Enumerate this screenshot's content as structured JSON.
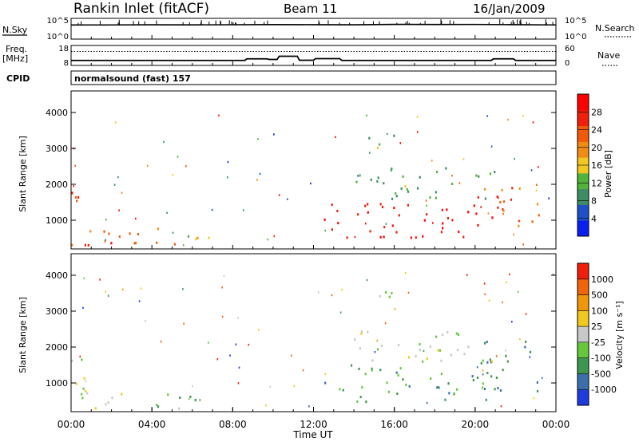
{
  "header": {
    "site": "Rankin Inlet (fitACF)",
    "beam": "Beam 11",
    "date": "16/Jan/2009"
  },
  "top_panels": {
    "nsky_label": "N.Sky",
    "nsky_ticks": [
      "10^5",
      "10^0"
    ],
    "nsearch_label": "N.Search",
    "nsearch_ticks": [
      "10^5",
      "10^0"
    ],
    "freq_label_1": "Freq.",
    "freq_label_2": "[MHz]",
    "freq_ticks": [
      "18",
      "8"
    ],
    "nave_label": "Nave",
    "nave_ticks": [
      "60",
      "0"
    ],
    "cpid_label": "CPID",
    "cpid_text": "normalsound (fast) 157"
  },
  "x_axis": {
    "title": "Time UT",
    "ticks": [
      "00:00",
      "04:00",
      "08:00",
      "12:00",
      "16:00",
      "20:00",
      "00:00"
    ]
  },
  "colors": {
    "power_scale": [
      "#0a1ef0",
      "#1e50c8",
      "#3c8c64",
      "#50b43c",
      "#f0c81e",
      "#f08c14",
      "#f05a0a",
      "#f01e0a",
      "#ff0000"
    ],
    "velocity_scale": [
      "#1e3cdc",
      "#3c6eaa",
      "#3c9650",
      "#64c83c",
      "#c8c8c8",
      "#f0c81e",
      "#f0960a",
      "#f0640a",
      "#f01e0a"
    ]
  },
  "chart_data": [
    {
      "type": "line",
      "title": "N.Sky / N.Search",
      "xlabel": "",
      "ylabel": "N.Sky",
      "y2label": "N.Search",
      "ylim": [
        1,
        100000
      ],
      "yscale": "log",
      "series": [
        {
          "name": "N.Sky",
          "x": [
            0,
            2,
            4,
            6,
            8,
            10,
            12,
            14,
            16,
            18,
            20,
            22,
            24
          ],
          "y": [
            2500,
            2600,
            2800,
            2700,
            2900,
            3200,
            3000,
            2800,
            3500,
            3300,
            3400,
            3000,
            2600
          ]
        },
        {
          "name": "N.Search",
          "x": [
            0,
            24
          ],
          "y": [
            1,
            1
          ]
        }
      ]
    },
    {
      "type": "line",
      "title": "Freq. / Nave",
      "xlabel": "",
      "ylabel": "Freq. [MHz]",
      "y2label": "Nave",
      "ylim": [
        8,
        18
      ],
      "y2lim": [
        0,
        60
      ],
      "series": [
        {
          "name": "Freq.",
          "x": [
            0,
            8.6,
            8.7,
            9.7,
            9.8,
            10.2,
            10.3,
            11.2,
            11.3,
            12.0,
            12.1,
            13.3,
            13.4,
            20.8,
            20.9,
            21.9,
            22.0,
            24
          ],
          "y": [
            10.5,
            10.5,
            11.3,
            11.3,
            11.0,
            11.0,
            12.6,
            12.6,
            10.6,
            10.6,
            11.4,
            11.4,
            10.5,
            10.5,
            11.3,
            11.3,
            10.5,
            10.5
          ]
        },
        {
          "name": "Nave",
          "x": [
            0,
            24
          ],
          "y": [
            42,
            42
          ]
        }
      ]
    },
    {
      "type": "heatmap",
      "title": "Power",
      "xlabel": "",
      "ylabel": "Slant Range [km]",
      "xlim": [
        0,
        24
      ],
      "ylim": [
        200,
        4600
      ],
      "yticks": [
        "1000",
        "2000",
        "3000",
        "4000"
      ],
      "colorbar_label": "Power [dB]",
      "colorbar_ticks": [
        "28",
        "24",
        "20",
        "16",
        "12",
        "8",
        "4"
      ],
      "clim": [
        0,
        30
      ],
      "regions": [
        {
          "t0": 0.0,
          "t1": 0.7,
          "r0": 800,
          "r1": 1900,
          "v": 24
        },
        {
          "t0": 0.0,
          "t1": 3.5,
          "r0": 250,
          "r1": 900,
          "v": 20
        },
        {
          "t0": 0.5,
          "t1": 2.5,
          "r0": 300,
          "r1": 600,
          "v": 28
        },
        {
          "t0": 3.8,
          "t1": 5.2,
          "r0": 350,
          "r1": 850,
          "v": 18
        },
        {
          "t0": 5.2,
          "t1": 7.0,
          "r0": 250,
          "r1": 700,
          "v": 16
        },
        {
          "t0": 12.5,
          "t1": 16.5,
          "r0": 500,
          "r1": 1600,
          "v": 26
        },
        {
          "t0": 16.5,
          "t1": 21.0,
          "r0": 500,
          "r1": 1500,
          "v": 28
        },
        {
          "t0": 20.0,
          "t1": 23.2,
          "r0": 800,
          "r1": 2000,
          "v": 22
        },
        {
          "t0": 14.0,
          "t1": 21.0,
          "r0": 1600,
          "r1": 2500,
          "v": 10
        },
        {
          "t0": 14.5,
          "t1": 16.0,
          "r0": 3000,
          "r1": 3600,
          "v": 12
        }
      ]
    },
    {
      "type": "heatmap",
      "title": "Velocity",
      "xlabel": "Time UT",
      "ylabel": "Slant Range [km]",
      "xlim": [
        0,
        24
      ],
      "ylim": [
        200,
        4600
      ],
      "yticks": [
        "1000",
        "2000",
        "3000",
        "4000"
      ],
      "colorbar_label": "Velocity [m s^-1]",
      "colorbar_ticks": [
        "1000",
        "500",
        "100",
        "25",
        "-25",
        "-100",
        "-500",
        "-1000"
      ],
      "clim": [
        -1000,
        1000
      ],
      "regions": [
        {
          "t0": 0.0,
          "t1": 3.5,
          "r0": 250,
          "r1": 900,
          "v": 50
        },
        {
          "t0": 0.0,
          "t1": 0.7,
          "r0": 800,
          "r1": 1900,
          "v": 0
        },
        {
          "t0": 3.8,
          "t1": 5.2,
          "r0": 350,
          "r1": 850,
          "v": -300
        },
        {
          "t0": 5.2,
          "t1": 7.0,
          "r0": 250,
          "r1": 700,
          "v": -300
        },
        {
          "t0": 12.5,
          "t1": 16.5,
          "r0": 500,
          "r1": 1600,
          "v": -350
        },
        {
          "t0": 16.5,
          "t1": 21.0,
          "r0": 500,
          "r1": 1500,
          "v": -400
        },
        {
          "t0": 20.0,
          "t1": 23.2,
          "r0": 800,
          "r1": 2200,
          "v": -500
        },
        {
          "t0": 14.0,
          "t1": 21.0,
          "r0": 1600,
          "r1": 2500,
          "v": 0
        },
        {
          "t0": 14.5,
          "t1": 16.0,
          "r0": 3000,
          "r1": 3600,
          "v": -200
        }
      ]
    }
  ]
}
